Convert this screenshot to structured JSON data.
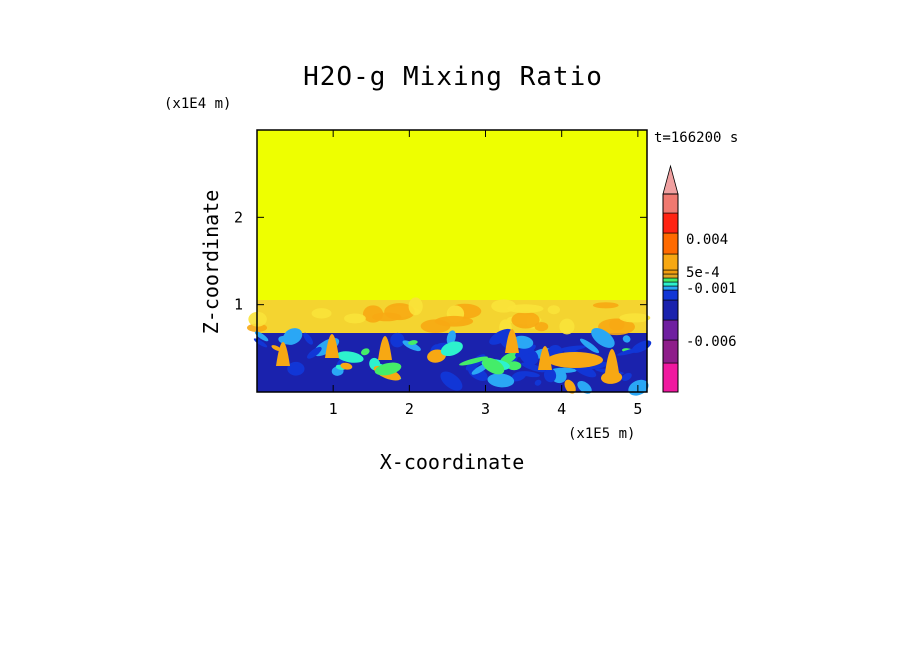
{
  "chart_data": {
    "type": "heatmap",
    "title": "H2O-g Mixing Ratio",
    "xlabel": "X-coordinate",
    "ylabel": "Z-coordinate",
    "x_multiplier": "(x1E5 m)",
    "y_multiplier": "(x1E4 m)",
    "time_label": "t=166200 s",
    "x_ticks": [
      "1",
      "2",
      "3",
      "4",
      "5"
    ],
    "y_ticks": [
      "1",
      "2"
    ],
    "xlim": [
      0,
      5.12
    ],
    "ylim": [
      0,
      3.0
    ],
    "grid": false,
    "legend": "right",
    "colorbar": {
      "colors": [
        "#f0199f",
        "#8e1d8a",
        "#6f1fa0",
        "#1a22ad",
        "#1136d6",
        "#2aa7f5",
        "#2df2cd",
        "#44ed69",
        "#e1a624",
        "#f29d0e",
        "#f7a813",
        "#ff6a00",
        "#ff2312",
        "#f07970",
        "#f0a0a0"
      ],
      "tick_labels": [
        "0.004",
        "5e-4",
        "-0.001",
        "-0.006"
      ],
      "extend": "max"
    },
    "regions": [
      {
        "name": "upper",
        "z_range": [
          1.05,
          3.0
        ],
        "color": "#eeff00"
      },
      {
        "name": "transition",
        "z_range": [
          0.72,
          1.05
        ],
        "color": "#f4d430"
      },
      {
        "name": "lower",
        "z_range": [
          0,
          0.72
        ],
        "color": "#1a22ad"
      }
    ]
  }
}
